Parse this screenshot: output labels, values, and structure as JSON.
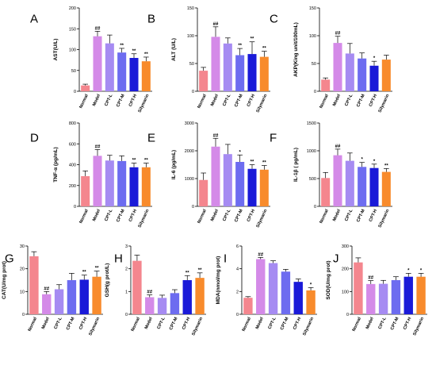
{
  "colors": {
    "Normal": "#F4868E",
    "Model": "#D48AE8",
    "CPT-L": "#A68BF2",
    "CPT-M": "#6D6CF0",
    "CPT-H": "#1A1AD8",
    "Silymarin": "#F88B2C",
    "errorbar": "#000000",
    "axis": "#000000"
  },
  "chart_data": [
    {
      "panel": "A",
      "type": "bar",
      "ylabel": "AST(U/L)",
      "ylim": [
        0,
        200
      ],
      "yticks": [
        0,
        50,
        100,
        150,
        200
      ],
      "categories": [
        "Normal",
        "Model",
        "CPT-L",
        "CPT-M",
        "CPT-H",
        "Silymarin"
      ],
      "values": [
        14,
        132,
        115,
        93,
        80,
        72
      ],
      "errors": [
        3,
        12,
        20,
        10,
        10,
        10
      ],
      "annotations": [
        "",
        "##",
        "",
        "**",
        "**",
        "**"
      ]
    },
    {
      "panel": "B",
      "type": "bar",
      "ylabel": "ALT (U/L)",
      "ylim": [
        0,
        150
      ],
      "yticks": [
        0,
        50,
        100,
        150
      ],
      "categories": [
        "Normal",
        "Model",
        "CPT-L",
        "CPT-M",
        "CPT-H",
        "Silymarin"
      ],
      "values": [
        37,
        98,
        86,
        65,
        67,
        62
      ],
      "errors": [
        6,
        18,
        10,
        12,
        22,
        10
      ],
      "annotations": [
        "",
        "##",
        "",
        "**",
        "**",
        "**"
      ]
    },
    {
      "panel": "C",
      "type": "bar",
      "ylabel": "AKP(King unit/100mL)",
      "ylim": [
        0,
        150
      ],
      "yticks": [
        0,
        50,
        100,
        150
      ],
      "categories": [
        "Normal",
        "Model",
        "CPT-L",
        "CPT-M",
        "CPT-H",
        "Silymarin"
      ],
      "values": [
        21,
        87,
        68,
        59,
        46,
        57
      ],
      "errors": [
        3,
        12,
        18,
        10,
        8,
        8
      ],
      "annotations": [
        "",
        "##",
        "",
        "",
        "*",
        ""
      ]
    },
    {
      "panel": "D",
      "type": "bar",
      "ylabel": "TNF-α (pg/mL)",
      "ylim": [
        0,
        800
      ],
      "yticks": [
        0,
        200,
        400,
        600,
        800
      ],
      "categories": [
        "Normal",
        "Model",
        "CPT-L",
        "CPT-M",
        "CPT-H",
        "Silymarin"
      ],
      "values": [
        290,
        485,
        440,
        435,
        375,
        375
      ],
      "errors": [
        50,
        60,
        50,
        50,
        40,
        40
      ],
      "annotations": [
        "",
        "##",
        "",
        "",
        "**",
        "**"
      ]
    },
    {
      "panel": "E",
      "type": "bar",
      "ylabel": "IL-6 (pg/mL)",
      "ylim": [
        0,
        3000
      ],
      "yticks": [
        0,
        1000,
        2000,
        3000
      ],
      "categories": [
        "Normal",
        "Model",
        "CPT-L",
        "CPT-M",
        "CPT-H",
        "Silymarin"
      ],
      "values": [
        950,
        2150,
        1880,
        1600,
        1350,
        1320
      ],
      "errors": [
        250,
        300,
        350,
        250,
        150,
        150
      ],
      "annotations": [
        "",
        "##",
        "",
        "*",
        "**",
        "**"
      ]
    },
    {
      "panel": "F",
      "type": "bar",
      "ylabel": "IL-1β ( pg/mL)",
      "ylim": [
        0,
        1500
      ],
      "yticks": [
        0,
        500,
        1000,
        1500
      ],
      "categories": [
        "Normal",
        "Model",
        "CPT-L",
        "CPT-M",
        "CPT-H",
        "Silymarin"
      ],
      "values": [
        510,
        920,
        820,
        710,
        690,
        620
      ],
      "errors": [
        100,
        110,
        140,
        80,
        70,
        60
      ],
      "annotations": [
        "",
        "##",
        "",
        "*",
        "*",
        "**"
      ]
    },
    {
      "panel": "G",
      "type": "bar",
      "ylabel": "CAT(U/mg prot)",
      "ylim": [
        0,
        30
      ],
      "yticks": [
        0,
        10,
        20,
        30
      ],
      "categories": [
        "Normal",
        "Model",
        "CPT-L",
        "CPT-M",
        "CPT-H",
        "Silymarin"
      ],
      "values": [
        25.5,
        8.8,
        11,
        15,
        15.2,
        16.5
      ],
      "errors": [
        2,
        1.2,
        2,
        3,
        2,
        2.5
      ],
      "annotations": [
        "",
        "##",
        "",
        "",
        "**",
        "**"
      ]
    },
    {
      "panel": "H",
      "type": "bar",
      "ylabel": "GSH(g prot/L)",
      "ylim": [
        0,
        3
      ],
      "yticks": [
        0,
        1,
        2,
        3
      ],
      "categories": [
        "Normal",
        "Model",
        "CPT-L",
        "CPT-M",
        "CPT-H",
        "Silymarin"
      ],
      "values": [
        2.35,
        0.75,
        0.72,
        0.93,
        1.5,
        1.6
      ],
      "errors": [
        0.25,
        0.1,
        0.12,
        0.15,
        0.2,
        0.22
      ],
      "annotations": [
        "",
        "##",
        "",
        "",
        "**",
        "**"
      ]
    },
    {
      "panel": "I",
      "type": "bar",
      "ylabel": "MDA(nmol/mg prot)",
      "ylim": [
        0,
        6
      ],
      "yticks": [
        0,
        2,
        4,
        6
      ],
      "categories": [
        "Normal",
        "Model",
        "CPT-L",
        "CPT-M",
        "CPT-H",
        "Silymarin"
      ],
      "values": [
        1.45,
        4.85,
        4.5,
        3.75,
        2.85,
        2.1
      ],
      "errors": [
        0.1,
        0.15,
        0.2,
        0.2,
        0.25,
        0.25
      ],
      "annotations": [
        "",
        "##",
        "",
        "",
        "",
        "*"
      ]
    },
    {
      "panel": "J",
      "type": "bar",
      "ylabel": "SOD(U/mg prot)",
      "ylim": [
        0,
        300
      ],
      "yticks": [
        0,
        100,
        200,
        300
      ],
      "categories": [
        "Normal",
        "Model",
        "CPT-L",
        "CPT-M",
        "CPT-H",
        "Silymarin"
      ],
      "values": [
        228,
        133,
        134,
        150,
        165,
        165
      ],
      "errors": [
        20,
        15,
        15,
        15,
        15,
        15
      ],
      "annotations": [
        "",
        "##",
        "",
        "",
        "*",
        "*"
      ]
    }
  ]
}
